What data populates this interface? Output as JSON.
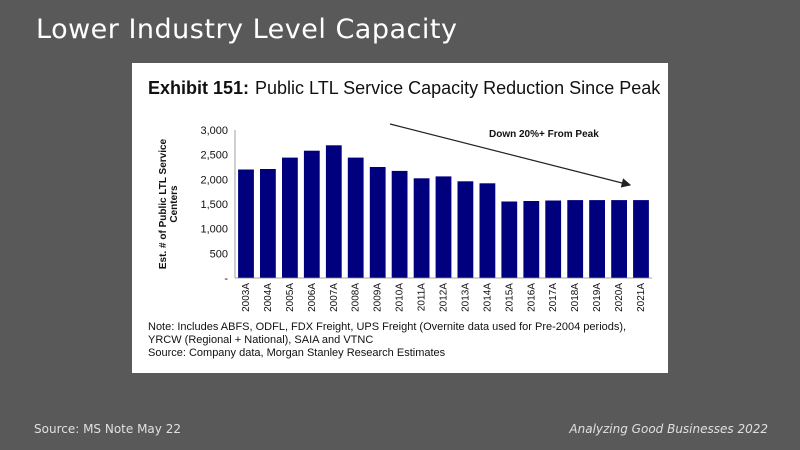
{
  "slide": {
    "title": "Lower Industry Level Capacity",
    "footer_left": "Source: MS Note May 22",
    "footer_right": "Analyzing Good Businesses 2022"
  },
  "exhibit": {
    "label": "Exhibit 151:",
    "title": "Public LTL Service Capacity Reduction Since Peak",
    "note": "Note: Includes ABFS, ODFL, FDX Freight, UPS Freight (Overnite data used for Pre-2004 periods), YRCW (Regional + National), SAIA and VTNC",
    "source": "Source: Company data, Morgan Stanley Research Estimates"
  },
  "chart_data": {
    "type": "bar",
    "title": "Public LTL Service Capacity Reduction Since Peak",
    "xlabel": "",
    "ylabel": "Est. # of Public LTL Service Centers",
    "ylim": [
      0,
      3000
    ],
    "yticks": [
      "-",
      "500",
      "1,000",
      "1,500",
      "2,000",
      "2,500",
      "3,000"
    ],
    "categories": [
      "2003A",
      "2004A",
      "2005A",
      "2006A",
      "2007A",
      "2008A",
      "2009A",
      "2010A",
      "2011A",
      "2012A",
      "2013A",
      "2014A",
      "2015A",
      "2016A",
      "2017A",
      "2018A",
      "2019A",
      "2020A",
      "2021A"
    ],
    "values": [
      2200,
      2210,
      2440,
      2580,
      2690,
      2440,
      2250,
      2170,
      2020,
      2060,
      1960,
      1920,
      1550,
      1560,
      1570,
      1580,
      1580,
      1580,
      1580
    ],
    "bar_color": "#00007f",
    "annotation": "Down 20%+ From Peak",
    "grid": false
  }
}
